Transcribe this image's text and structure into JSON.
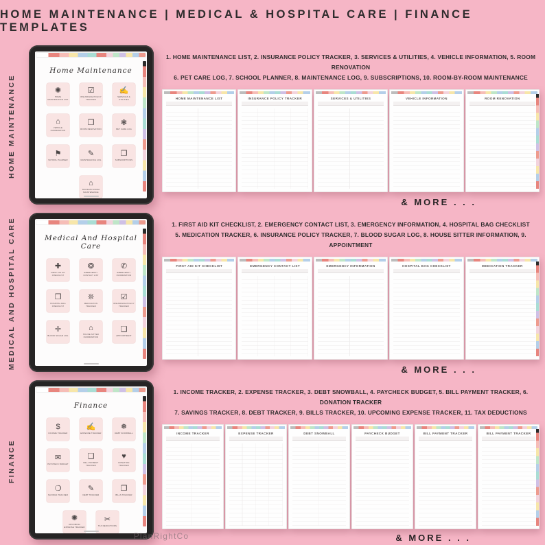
{
  "page": {
    "title": "HOME MAINTENANCE | MEDICAL & HOSPITAL CARE | FINANCE TEMPLATES",
    "more_label": "& MORE . . .",
    "watermark": "PlanRightCo",
    "background_color": "#f6b6c6",
    "tab_colors": [
      "#e8857e",
      "#f6bdb7",
      "#f7e6a9",
      "#bfe6c8",
      "#b4cfe9",
      "#a9ddd4",
      "#cfc0e6",
      "#ee9b8e",
      "#f3d3dd"
    ],
    "card_color": "#f9e4e3",
    "tablet_frame_color": "#262424"
  },
  "sections": [
    {
      "side_label": "HOME MAINTENANCE",
      "tablet_title": "Home Maintenance",
      "description_line1": "1. HOME MAINTENANCE LIST, 2. INSURANCE POLICY TRACKER, 3. SERVICES & UTILITIES, 4. VEHICLE INFORMATION, 5.  ROOM RENOVATION",
      "description_line2": "6. PET CARE LOG, 7. SCHOOL PLANNER, 8. MAINTENANCE LOG, 9. SUBSCRIPTIONS, 10. ROOM-BY-ROOM MAINTENANCE",
      "apps": [
        {
          "icon": "✺",
          "label": "Home Maintenance List"
        },
        {
          "icon": "☑",
          "label": "Insurance Policy Tracker"
        },
        {
          "icon": "✍",
          "label": "Services & Utilities"
        },
        {
          "icon": "⌂",
          "label": "Vehicle Information"
        },
        {
          "icon": "❒",
          "label": "Room Renovation"
        },
        {
          "icon": "❃",
          "label": "Pet Care Log"
        },
        {
          "icon": "⚑",
          "label": "School Planner"
        },
        {
          "icon": "✎",
          "label": "Maintenance Log"
        },
        {
          "icon": "❐",
          "label": "Subscriptions"
        },
        {
          "icon": "⌂",
          "label": "Room-By-Room Maintenance"
        }
      ],
      "pages": [
        "HOME MAINTENANCE LIST",
        "INSURANCE POLICY TRACKER",
        "SERVICES & UTILITIES",
        "VEHICLE INFORMATION",
        "ROOM RENOVATION"
      ]
    },
    {
      "side_label": "MEDICAL AND HOSPITAL CARE",
      "tablet_title": "Medical And Hospital Care",
      "description_line1": "1. FIRST AID KIT CHECKLIST, 2. EMERGENCY CONTACT LIST, 3. EMERGENCY INFORMATION, 4. HOSPITAL BAG CHECKLIST",
      "description_line2": "5. MEDICATION TRACKER, 6. INSURANCE POLICY TRACKER, 7. BLOOD SUGAR LOG, 8. HOUSE SITTER INFORMATION, 9. APPOINTMENT",
      "apps": [
        {
          "icon": "✚",
          "label": "First Aid Kit Checklist"
        },
        {
          "icon": "❂",
          "label": "Emergency Contact List"
        },
        {
          "icon": "✆",
          "label": "Emergency Information"
        },
        {
          "icon": "❒",
          "label": "Hospital Bag Checklist"
        },
        {
          "icon": "❊",
          "label": "Medication Tracker"
        },
        {
          "icon": "☑",
          "label": "Insurance Policy Tracker"
        },
        {
          "icon": "✛",
          "label": "Blood Sugar Log"
        },
        {
          "icon": "⌂",
          "label": "House Sitter Information"
        },
        {
          "icon": "❑",
          "label": "Appointment"
        }
      ],
      "pages": [
        "FIRST AID KIT CHECKLIST",
        "EMERGENCY CONTACT LIST",
        "EMERGENCY INFORMATION",
        "HOSPITAL BAG CHECKLIST",
        "MEDICATION TRACKER"
      ]
    },
    {
      "side_label": "FINANCE",
      "tablet_title": "Finance",
      "description_line1": "1. INCOME TRACKER, 2. EXPENSE TRACKER, 3. DEBT SNOWBALL, 4. PAYCHECK BUDGET, 5. BILL PAYMENT TRACKER, 6. DONATION TRACKER",
      "description_line2": "7. SAVINGS TRACKER, 8. DEBT TRACKER, 9. BILLS TRACKER, 10. UPCOMING EXPENSE TRACKER, 11. TAX DEDUCTIONS",
      "apps": [
        {
          "icon": "$",
          "label": "Income Tracker"
        },
        {
          "icon": "✍",
          "label": "Expense Tracker"
        },
        {
          "icon": "❅",
          "label": "Debt Snowball"
        },
        {
          "icon": "✉",
          "label": "Paycheck Budget"
        },
        {
          "icon": "❑",
          "label": "Bill Payment Tracker"
        },
        {
          "icon": "♥",
          "label": "Donation Tracker"
        },
        {
          "icon": "❍",
          "label": "Savings Tracker"
        },
        {
          "icon": "✎",
          "label": "Debt Tracker"
        },
        {
          "icon": "❐",
          "label": "Bills Tracker"
        },
        {
          "icon": "✺",
          "label": "Upcoming Expense Tracker"
        },
        {
          "icon": "✂",
          "label": "Tax Deductions"
        }
      ],
      "pages": [
        "INCOME TRACKER",
        "EXPENSE TRACKER",
        "DEBT SNOWBALL",
        "PAYCHECK BUDGET",
        "BILL PAYMENT TRACKER",
        "BILL PAYMENT TRACKER"
      ]
    }
  ]
}
